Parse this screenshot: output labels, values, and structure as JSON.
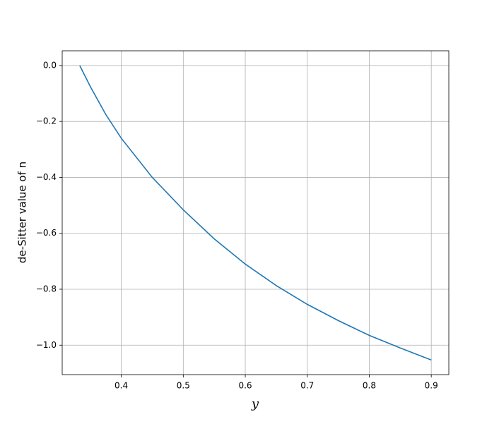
{
  "chart_data": {
    "type": "line",
    "x_label": "y",
    "y_label": "de-Sitter value of n",
    "x": [
      0.333,
      0.35,
      0.375,
      0.4,
      0.45,
      0.5,
      0.55,
      0.6,
      0.65,
      0.7,
      0.75,
      0.8,
      0.85,
      0.9
    ],
    "series": [
      {
        "color": "#1f77b4",
        "values": [
          0,
          -0.075,
          -0.175,
          -0.26,
          -0.4,
          -0.516,
          -0.62,
          -0.71,
          -0.787,
          -0.854,
          -0.912,
          -0.965,
          -1.01,
          -1.053
        ]
      }
    ],
    "xlim": [
      0.3047,
      0.9283
    ],
    "ylim": [
      -1.1053,
      0.0527
    ],
    "xticks": [
      0.4,
      0.5,
      0.6,
      0.7,
      0.8,
      0.9
    ],
    "yticks": [
      {
        "value": 0,
        "label": "0.0"
      },
      {
        "value": -0.2,
        "label": "−0.2"
      },
      {
        "value": -0.4,
        "label": "−0.4"
      },
      {
        "value": -0.6,
        "label": "−0.6"
      },
      {
        "value": -0.8,
        "label": "−0.8"
      },
      {
        "value": -1.0,
        "label": "−1.0"
      }
    ],
    "grid": true
  }
}
